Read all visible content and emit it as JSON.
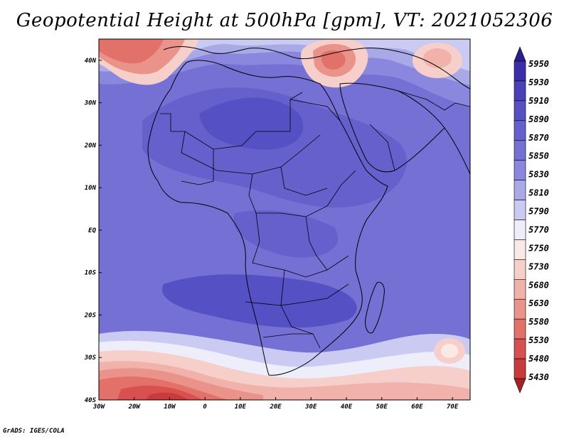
{
  "title": "Geopotential Height at 500hPa [gpm], VT: 2021052306",
  "footer": "GrADS: IGES/COLA",
  "map": {
    "projection": "latlon",
    "lon_range": [
      -30,
      75
    ],
    "lat_range": [
      -40,
      45
    ],
    "lon_ticks": [
      {
        "value": -30,
        "label": "30W"
      },
      {
        "value": -20,
        "label": "20W"
      },
      {
        "value": -10,
        "label": "10W"
      },
      {
        "value": 0,
        "label": "0"
      },
      {
        "value": 10,
        "label": "10E"
      },
      {
        "value": 20,
        "label": "20E"
      },
      {
        "value": 30,
        "label": "30E"
      },
      {
        "value": 40,
        "label": "40E"
      },
      {
        "value": 50,
        "label": "50E"
      },
      {
        "value": 60,
        "label": "60E"
      },
      {
        "value": 70,
        "label": "70E"
      }
    ],
    "lat_ticks": [
      {
        "value": 40,
        "label": "40N"
      },
      {
        "value": 30,
        "label": "30N"
      },
      {
        "value": 20,
        "label": "20N"
      },
      {
        "value": 10,
        "label": "10N"
      },
      {
        "value": 0,
        "label": "EQ"
      },
      {
        "value": -10,
        "label": "10S"
      },
      {
        "value": -20,
        "label": "20S"
      },
      {
        "value": -30,
        "label": "30S"
      },
      {
        "value": -40,
        "label": "40S"
      }
    ]
  },
  "colorbar": {
    "levels": [
      {
        "label": "5950",
        "color": "#2a1f8c"
      },
      {
        "label": "5930",
        "color": "#3a2fa8"
      },
      {
        "label": "5910",
        "color": "#4a40b8"
      },
      {
        "label": "5890",
        "color": "#5550c4"
      },
      {
        "label": "5870",
        "color": "#6560cc"
      },
      {
        "label": "5850",
        "color": "#7570d4"
      },
      {
        "label": "5830",
        "color": "#8a88de"
      },
      {
        "label": "5810",
        "color": "#a9a9e8"
      },
      {
        "label": "5790",
        "color": "#cacaf2"
      },
      {
        "label": "5770",
        "color": "#eeeefb"
      },
      {
        "label": "5750",
        "color": "#fbe9e6"
      },
      {
        "label": "5730",
        "color": "#f6cfca"
      },
      {
        "label": "5680",
        "color": "#f0b2ab"
      },
      {
        "label": "5630",
        "color": "#e9938a"
      },
      {
        "label": "5580",
        "color": "#e2716a"
      },
      {
        "label": "5530",
        "color": "#d95050"
      },
      {
        "label": "5480",
        "color": "#c93a3a"
      },
      {
        "label": "5430",
        "color": "#a82020"
      }
    ]
  }
}
